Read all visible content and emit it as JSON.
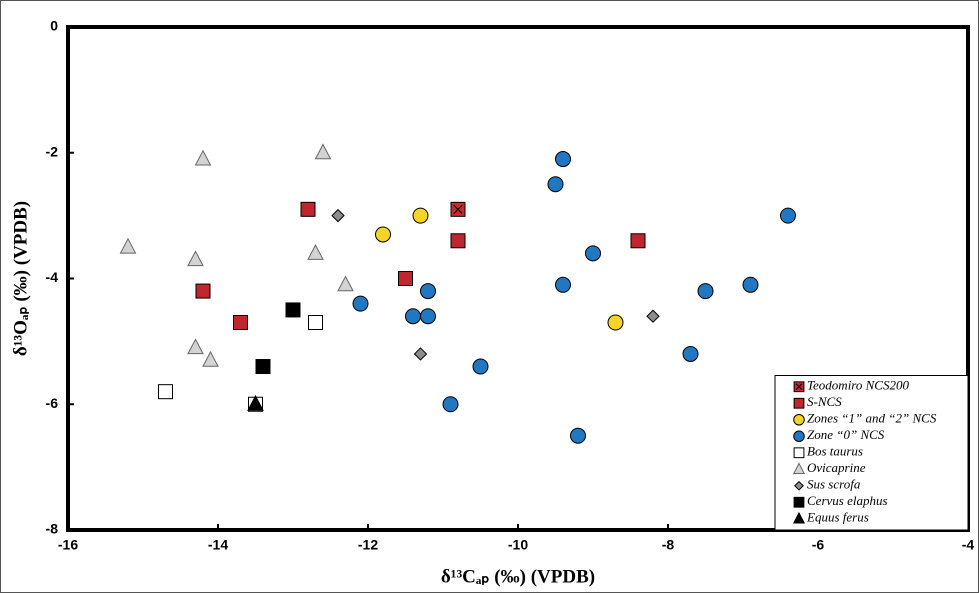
{
  "chart_data": {
    "type": "scatter",
    "x_label": "δ¹³Cₐₚ (‰) (VPDB)",
    "y_label": "δ¹³Oₐₚ (‰) (VPDB)",
    "xlim": [
      -16,
      -4
    ],
    "xticks": [
      -16,
      -14,
      -12,
      -10,
      -8,
      -6,
      -4
    ],
    "ylim": [
      -8,
      0
    ],
    "yticks": [
      -8,
      -6,
      -4,
      -2,
      0
    ],
    "legend_position": "lower right",
    "series": [
      {
        "name": "Teodomiro NCS200",
        "marker": "square-x",
        "color": "#d0262d",
        "x": [
          -10.8
        ],
        "y": [
          -2.9
        ]
      },
      {
        "name": "S-NCS",
        "marker": "square",
        "color": "#c0262d",
        "x": [
          -12.8,
          -10.8,
          -8.4,
          -11.5,
          -14.2,
          -13.7
        ],
        "y": [
          -2.9,
          -3.4,
          -3.4,
          -4.0,
          -4.2,
          -4.7
        ]
      },
      {
        "name": "Zones “1” and “2” NCS",
        "marker": "circle",
        "color": "#f5d327",
        "x": [
          -11.8,
          -11.3,
          -8.7
        ],
        "y": [
          -3.3,
          -3.0,
          -4.7
        ]
      },
      {
        "name": "Zone “0” NCS",
        "marker": "circle",
        "color": "#1f78c1",
        "x": [
          -9.4,
          -9.5,
          -6.4,
          -9.0,
          -9.4,
          -7.5,
          -6.9,
          -11.2,
          -12.1,
          -11.4,
          -11.2,
          -7.7,
          -10.5,
          -10.9,
          -9.2
        ],
        "y": [
          -2.1,
          -2.5,
          -3.0,
          -3.6,
          -4.1,
          -4.2,
          -4.1,
          -4.2,
          -4.4,
          -4.6,
          -4.6,
          -5.2,
          -5.4,
          -6.0,
          -6.5
        ]
      },
      {
        "name": "Bos taurus",
        "marker": "square",
        "color": "#ffffff",
        "x": [
          -14.7,
          -12.7,
          -13.5
        ],
        "y": [
          -5.8,
          -4.7,
          -6.0
        ]
      },
      {
        "name": "Ovicaprine",
        "marker": "triangle",
        "color": "#d3d3d3",
        "x": [
          -14.2,
          -12.6,
          -15.2,
          -14.3,
          -12.7,
          -12.3,
          -14.3,
          -14.1
        ],
        "y": [
          -2.1,
          -2.0,
          -3.5,
          -3.7,
          -3.6,
          -4.1,
          -5.1,
          -5.3
        ]
      },
      {
        "name": "Sus scrofa",
        "marker": "diamond",
        "color": "#8c8c8c",
        "x": [
          -12.4,
          -11.3,
          -8.2
        ],
        "y": [
          -3.0,
          -5.2,
          -4.6
        ]
      },
      {
        "name": "Cervus elaphus",
        "marker": "square",
        "color": "#000000",
        "x": [
          -13.0,
          -13.4
        ],
        "y": [
          -4.5,
          -5.4
        ]
      },
      {
        "name": "Equus ferus",
        "marker": "triangle",
        "color": "#000000",
        "x": [
          -13.5
        ],
        "y": [
          -6.0
        ]
      }
    ]
  }
}
